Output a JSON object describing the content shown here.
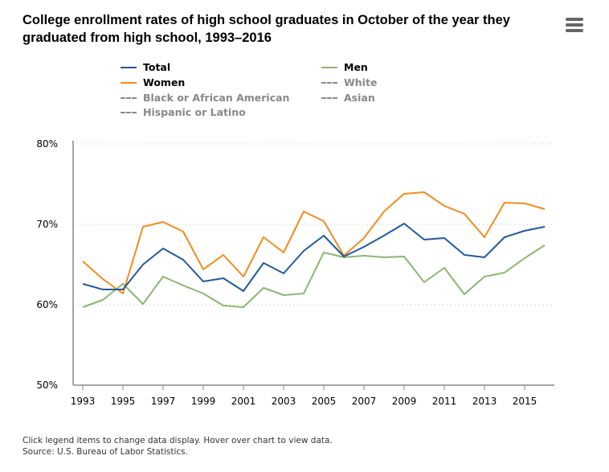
{
  "title": "College enrollment rates of high school graduates in October of the year they graduated from high school, 1993–2016",
  "menu_icon": "hamburger-menu-icon",
  "footer": {
    "note": "Click legend items to change data display. Hover over chart to view data.",
    "source": "Source: U.S. Bureau of Labor Statistics."
  },
  "chart_data": {
    "type": "line",
    "title": "College enrollment rates of high school graduates in October of the year they graduated from high school, 1993–2016",
    "x": [
      1993,
      1994,
      1995,
      1996,
      1997,
      1998,
      1999,
      2000,
      2001,
      2002,
      2003,
      2004,
      2005,
      2006,
      2007,
      2008,
      2009,
      2010,
      2011,
      2012,
      2013,
      2014,
      2015,
      2016
    ],
    "xticks": [
      "1993",
      "1995",
      "1997",
      "1999",
      "2001",
      "2003",
      "2005",
      "2007",
      "2009",
      "2011",
      "2013",
      "2015"
    ],
    "yticks": [
      "50%",
      "60%",
      "70%",
      "80%"
    ],
    "ylim": [
      50,
      80
    ],
    "grid": true,
    "legend": [
      {
        "name": "Total",
        "color": "#1f5aa0",
        "active": true
      },
      {
        "name": "Men",
        "color": "#8fb573",
        "active": true
      },
      {
        "name": "Women",
        "color": "#f28c1e",
        "active": true
      },
      {
        "name": "White",
        "color": "#888888",
        "active": false
      },
      {
        "name": "Black or African American",
        "color": "#888888",
        "active": false
      },
      {
        "name": "Asian",
        "color": "#888888",
        "active": false
      },
      {
        "name": "Hispanic or Latino",
        "color": "#888888",
        "active": false
      }
    ],
    "series": [
      {
        "name": "Total",
        "color": "#1f5aa0",
        "values": [
          62.6,
          61.9,
          61.9,
          65.0,
          67.0,
          65.6,
          62.9,
          63.3,
          61.7,
          65.2,
          63.9,
          66.7,
          68.6,
          66.0,
          67.2,
          68.6,
          70.1,
          68.1,
          68.3,
          66.2,
          65.9,
          68.4,
          69.2,
          69.7
        ]
      },
      {
        "name": "Women",
        "color": "#f28c1e",
        "values": [
          65.4,
          63.2,
          61.4,
          69.7,
          70.3,
          69.1,
          64.4,
          66.2,
          63.5,
          68.4,
          66.5,
          71.6,
          70.4,
          66.1,
          68.3,
          71.6,
          73.8,
          74.0,
          72.3,
          71.3,
          68.4,
          72.7,
          72.6,
          71.9
        ]
      },
      {
        "name": "Men",
        "color": "#8fb573",
        "values": [
          59.7,
          60.6,
          62.6,
          60.1,
          63.5,
          62.4,
          61.4,
          59.9,
          59.7,
          62.1,
          61.2,
          61.4,
          66.5,
          65.9,
          66.1,
          65.9,
          66.0,
          62.8,
          64.6,
          61.3,
          63.5,
          64.0,
          65.8,
          67.4
        ]
      }
    ]
  }
}
